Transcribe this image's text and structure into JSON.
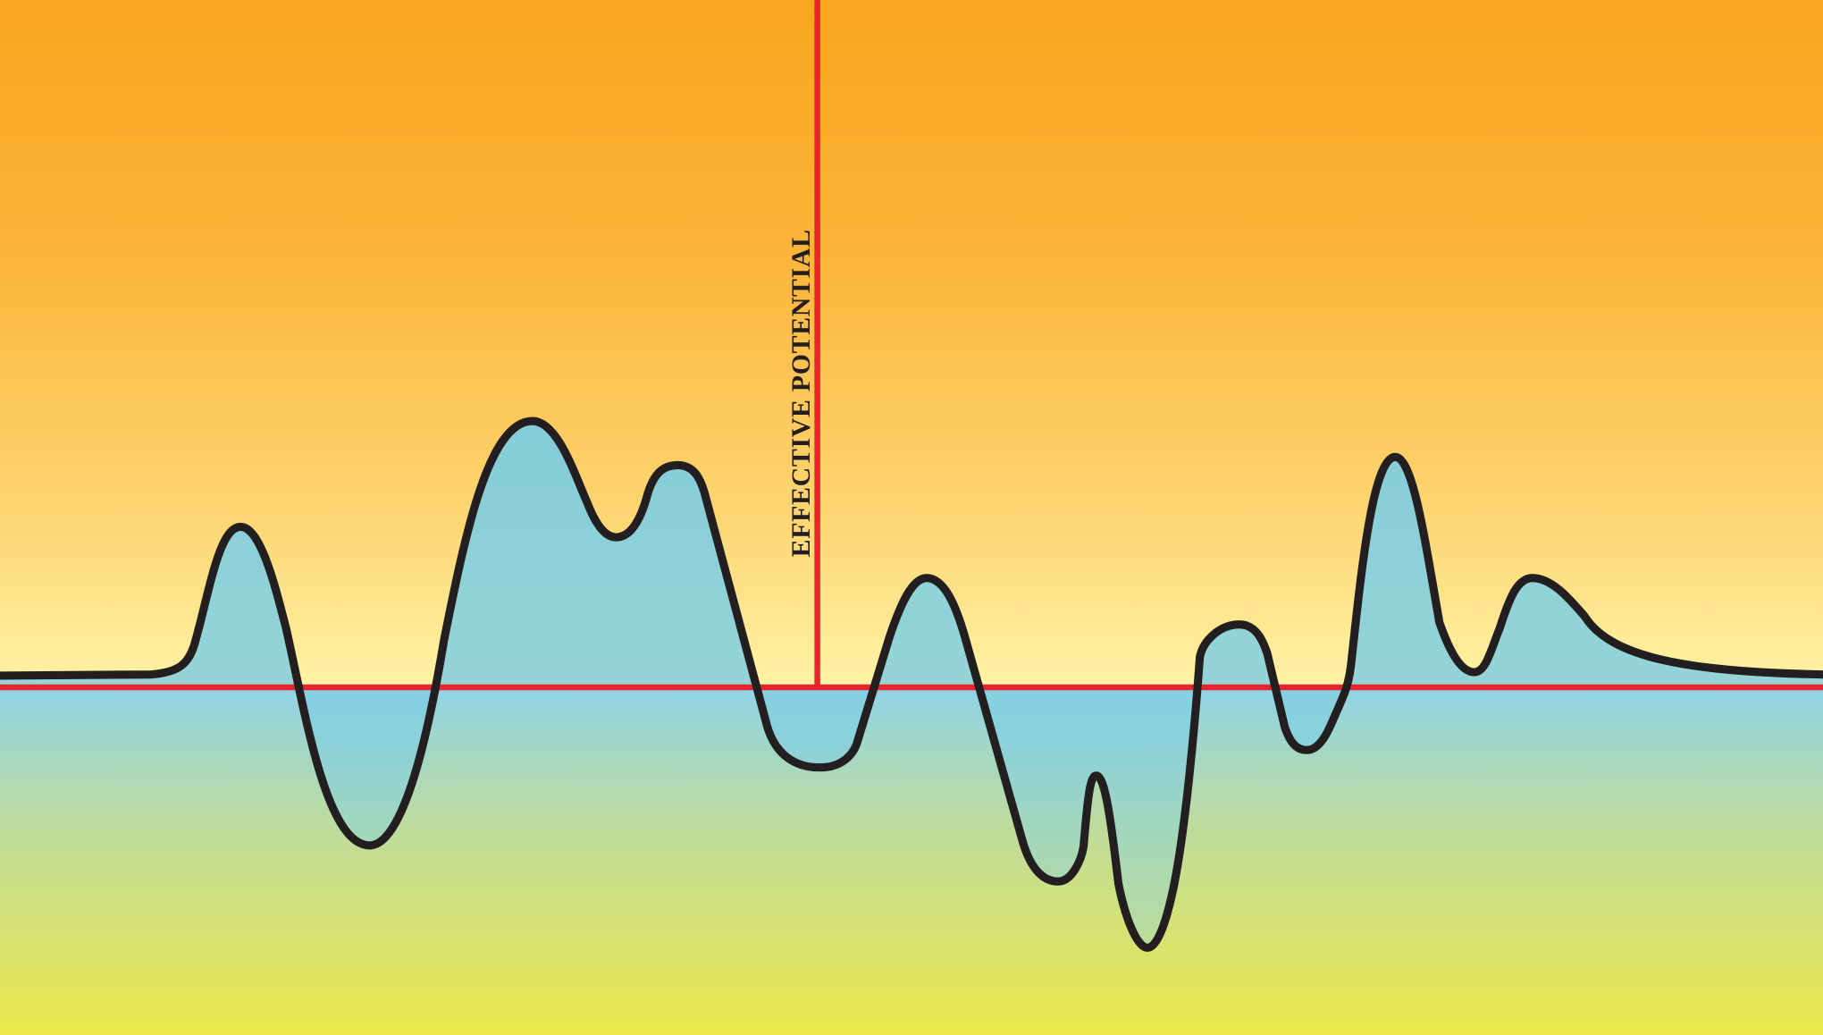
{
  "label": "EFFECTIVE POTENTIAL"
}
